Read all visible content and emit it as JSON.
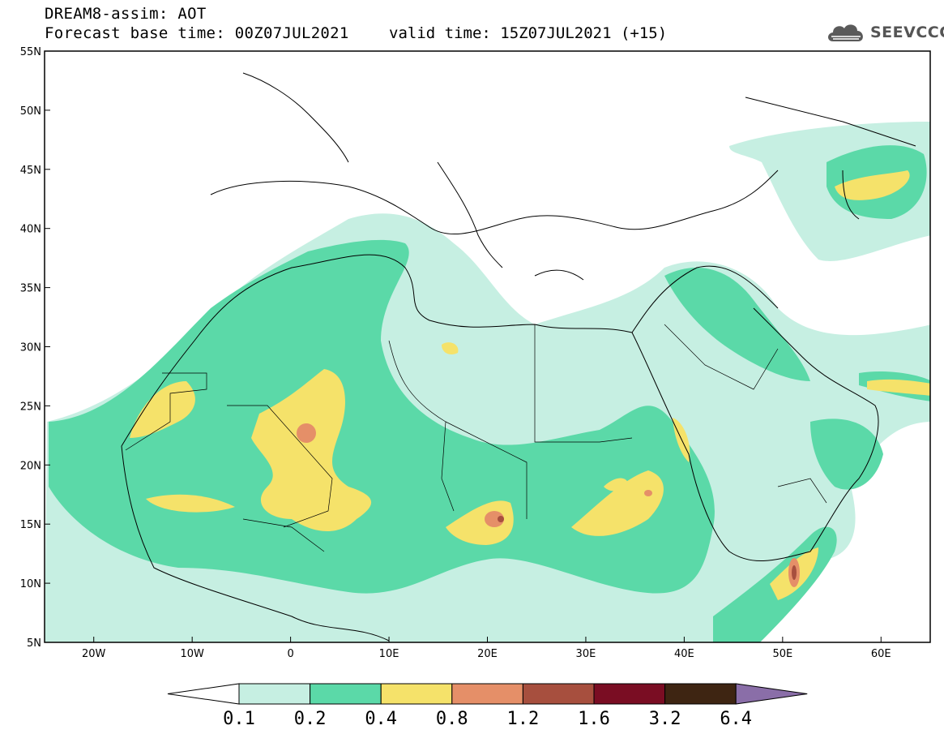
{
  "header": {
    "line1": "DREAM8-assim: AOT",
    "line2": "Forecast base time: 00Z07JUL2021",
    "valid": "valid time: 15Z07JUL2021 (+15)",
    "logo_text": "SEEVCCC",
    "logo_icon": "cloud-icon"
  },
  "map": {
    "lon_range": [
      -25,
      65
    ],
    "lat_range": [
      5,
      55
    ],
    "lat_labels": [
      "55N",
      "50N",
      "45N",
      "40N",
      "35N",
      "30N",
      "25N",
      "20N",
      "15N",
      "10N",
      "5N"
    ],
    "lon_labels": [
      "20W",
      "10W",
      "0",
      "10E",
      "20E",
      "30E",
      "40E",
      "50E",
      "60E"
    ],
    "legend_colors": {
      "0.1-0.2": "#c6efe2",
      "0.2-0.4": "#5bd9a8",
      "0.4-0.8": "#f5e26a",
      "0.8-1.2": "#e58f68",
      "1.2-1.6": "#a74f3e",
      "1.6-3.2": "#7a0d23",
      "3.2-6.4": "#3e2512",
      "above-6.4": "#8a6ea8"
    }
  },
  "colorbar": {
    "labels": [
      "0.1",
      "0.2",
      "0.4",
      "0.8",
      "1.2",
      "1.6",
      "3.2",
      "6.4"
    ],
    "colors": [
      "#c6efe2",
      "#5bd9a8",
      "#f5e26a",
      "#e58f68",
      "#a74f3e",
      "#7a0d23",
      "#3e2512"
    ],
    "low_color": "#ffffff",
    "high_color": "#8a6ea8"
  }
}
